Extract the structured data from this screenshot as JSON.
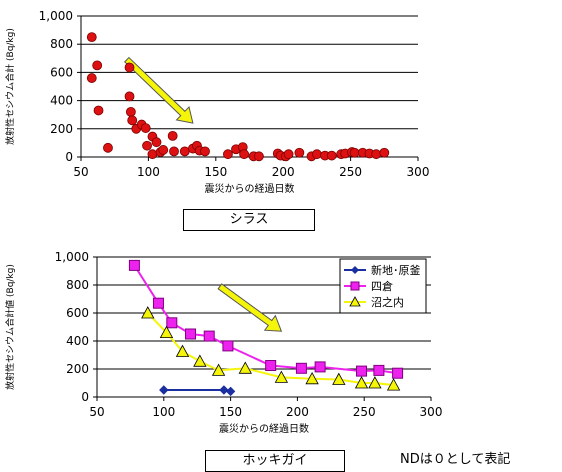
{
  "captions": {
    "top": "シラス",
    "bottom": "ホッキガイ"
  },
  "note": "NDは０として表記",
  "chart_data": [
    {
      "type": "scatter",
      "title": "",
      "xlabel": "震災からの経過日数",
      "ylabel": "放射性セシウム合計 (Bq/kg)",
      "xlim": [
        50,
        300
      ],
      "ylim": [
        0,
        1000
      ],
      "xticks": [
        "50",
        "100",
        "150",
        "200",
        "250",
        "300"
      ],
      "yticks": [
        "0",
        "200",
        "400",
        "600",
        "800",
        "1,000"
      ],
      "grid": true,
      "marker_color": "#dd1111",
      "trend_arrow": {
        "from": [
          84,
          690
        ],
        "to": [
          133,
          240
        ],
        "color": "#f5f50a"
      },
      "series": [
        {
          "points": [
            [
              58,
              850
            ],
            [
              58,
              560
            ],
            [
              62,
              650
            ],
            [
              63,
              330
            ],
            [
              70,
              65
            ],
            [
              86,
              635
            ],
            [
              86,
              430
            ],
            [
              87,
              320
            ],
            [
              88,
              260
            ],
            [
              91,
              200
            ],
            [
              95,
              230
            ],
            [
              98,
              205
            ],
            [
              99,
              80
            ],
            [
              103,
              145
            ],
            [
              103,
              20
            ],
            [
              106,
              105
            ],
            [
              109,
              35
            ],
            [
              111,
              50
            ],
            [
              118,
              150
            ],
            [
              119,
              40
            ],
            [
              127,
              40
            ],
            [
              133,
              60
            ],
            [
              136,
              80
            ],
            [
              138,
              45
            ],
            [
              142,
              40
            ],
            [
              159,
              20
            ],
            [
              165,
              55
            ],
            [
              170,
              70
            ],
            [
              171,
              20
            ],
            [
              178,
              5
            ],
            [
              182,
              5
            ],
            [
              196,
              25
            ],
            [
              198,
              10
            ],
            [
              202,
              5
            ],
            [
              204,
              20
            ],
            [
              212,
              30
            ],
            [
              221,
              5
            ],
            [
              225,
              20
            ],
            [
              231,
              10
            ],
            [
              236,
              10
            ],
            [
              243,
              20
            ],
            [
              246,
              25
            ],
            [
              251,
              35
            ],
            [
              253,
              30
            ],
            [
              259,
              30
            ],
            [
              264,
              25
            ],
            [
              269,
              20
            ],
            [
              275,
              30
            ]
          ]
        }
      ]
    },
    {
      "type": "line",
      "title": "",
      "xlabel": "震災からの経過日数",
      "ylabel": "放射性セシウム合計値 (Bq/kg)",
      "xlim": [
        50,
        300
      ],
      "ylim": [
        0,
        1000
      ],
      "xticks": [
        "50",
        "100",
        "150",
        "200",
        "250",
        "300"
      ],
      "yticks": [
        "0",
        "200",
        "400",
        "600",
        "800",
        "1,000"
      ],
      "grid": true,
      "legend": "top-right",
      "trend_arrow": {
        "from": [
          142,
          790
        ],
        "to": [
          188,
          470
        ],
        "color": "#f5f50a"
      },
      "series": [
        {
          "name": "新地･原釜",
          "color": "#1a2fa0",
          "marker": "diamond",
          "points": [
            [
              100,
              50
            ],
            [
              145,
              50
            ],
            [
              150,
              40
            ]
          ]
        },
        {
          "name": "四倉",
          "color": "#ee22ee",
          "marker": "square",
          "points": [
            [
              78,
              940
            ],
            [
              96,
              670
            ],
            [
              106,
              530
            ],
            [
              120,
              450
            ],
            [
              134,
              435
            ],
            [
              148,
              365
            ],
            [
              180,
              225
            ],
            [
              203,
              205
            ],
            [
              217,
              215
            ],
            [
              248,
              185
            ],
            [
              261,
              190
            ],
            [
              275,
              170
            ]
          ]
        },
        {
          "name": "沼之内",
          "color": "#f5f50a",
          "marker": "triangle",
          "points": [
            [
              88,
              600
            ],
            [
              102,
              460
            ],
            [
              114,
              325
            ],
            [
              127,
              255
            ],
            [
              141,
              190
            ],
            [
              161,
              205
            ],
            [
              188,
              140
            ],
            [
              211,
              130
            ],
            [
              231,
              125
            ],
            [
              248,
              100
            ],
            [
              258,
              100
            ],
            [
              272,
              85
            ]
          ]
        }
      ]
    }
  ]
}
